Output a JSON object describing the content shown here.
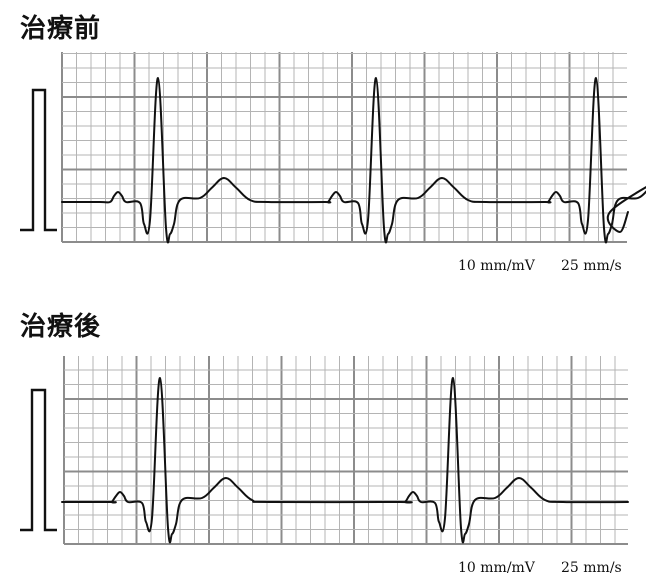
{
  "panels": [
    {
      "title": "治療前",
      "scale_gain": "10 mm/mV",
      "scale_speed": "25 mm/s"
    },
    {
      "title": "治療後",
      "scale_gain": "10 mm/mV",
      "scale_speed": "25 mm/s"
    }
  ],
  "colors": {
    "grid_minor": "#b4b4b4",
    "grid_major": "#8c8c8c",
    "trace": "#111111"
  }
}
